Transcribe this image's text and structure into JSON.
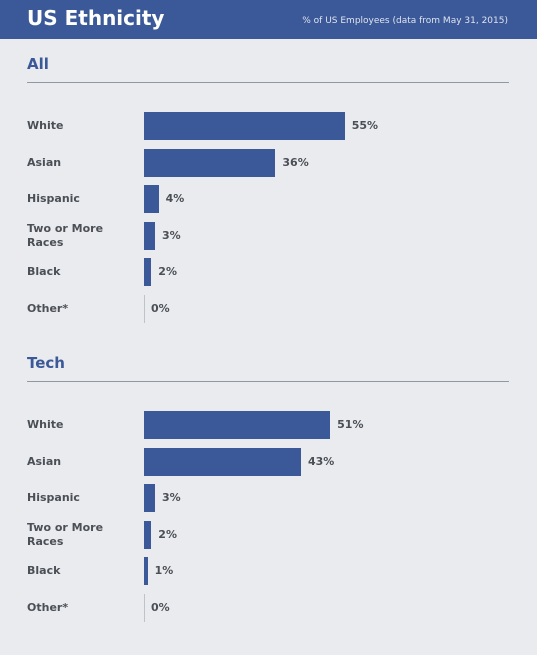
{
  "header": {
    "title": "US Ethnicity",
    "note": "% of US Employees (data from May 31, 2015)"
  },
  "colors": {
    "header_bg": "#3b5998",
    "bar": "#3b5998",
    "section_title": "#3b5998",
    "background": "#e9ebee"
  },
  "chart_data": [
    {
      "type": "bar",
      "orientation": "horizontal",
      "title": "All",
      "categories": [
        "White",
        "Asian",
        "Hispanic",
        "Two or More Races",
        "Black",
        "Other*"
      ],
      "values": [
        55,
        36,
        4,
        3,
        2,
        0
      ],
      "value_labels": [
        "55%",
        "36%",
        "4%",
        "3%",
        "2%",
        "0%"
      ],
      "unit": "%",
      "xlim": [
        0,
        100
      ]
    },
    {
      "type": "bar",
      "orientation": "horizontal",
      "title": "Tech",
      "categories": [
        "White",
        "Asian",
        "Hispanic",
        "Two or More Races",
        "Black",
        "Other*"
      ],
      "values": [
        51,
        43,
        3,
        2,
        1,
        0
      ],
      "value_labels": [
        "51%",
        "43%",
        "3%",
        "2%",
        "1%",
        "0%"
      ],
      "unit": "%",
      "xlim": [
        0,
        100
      ]
    }
  ]
}
